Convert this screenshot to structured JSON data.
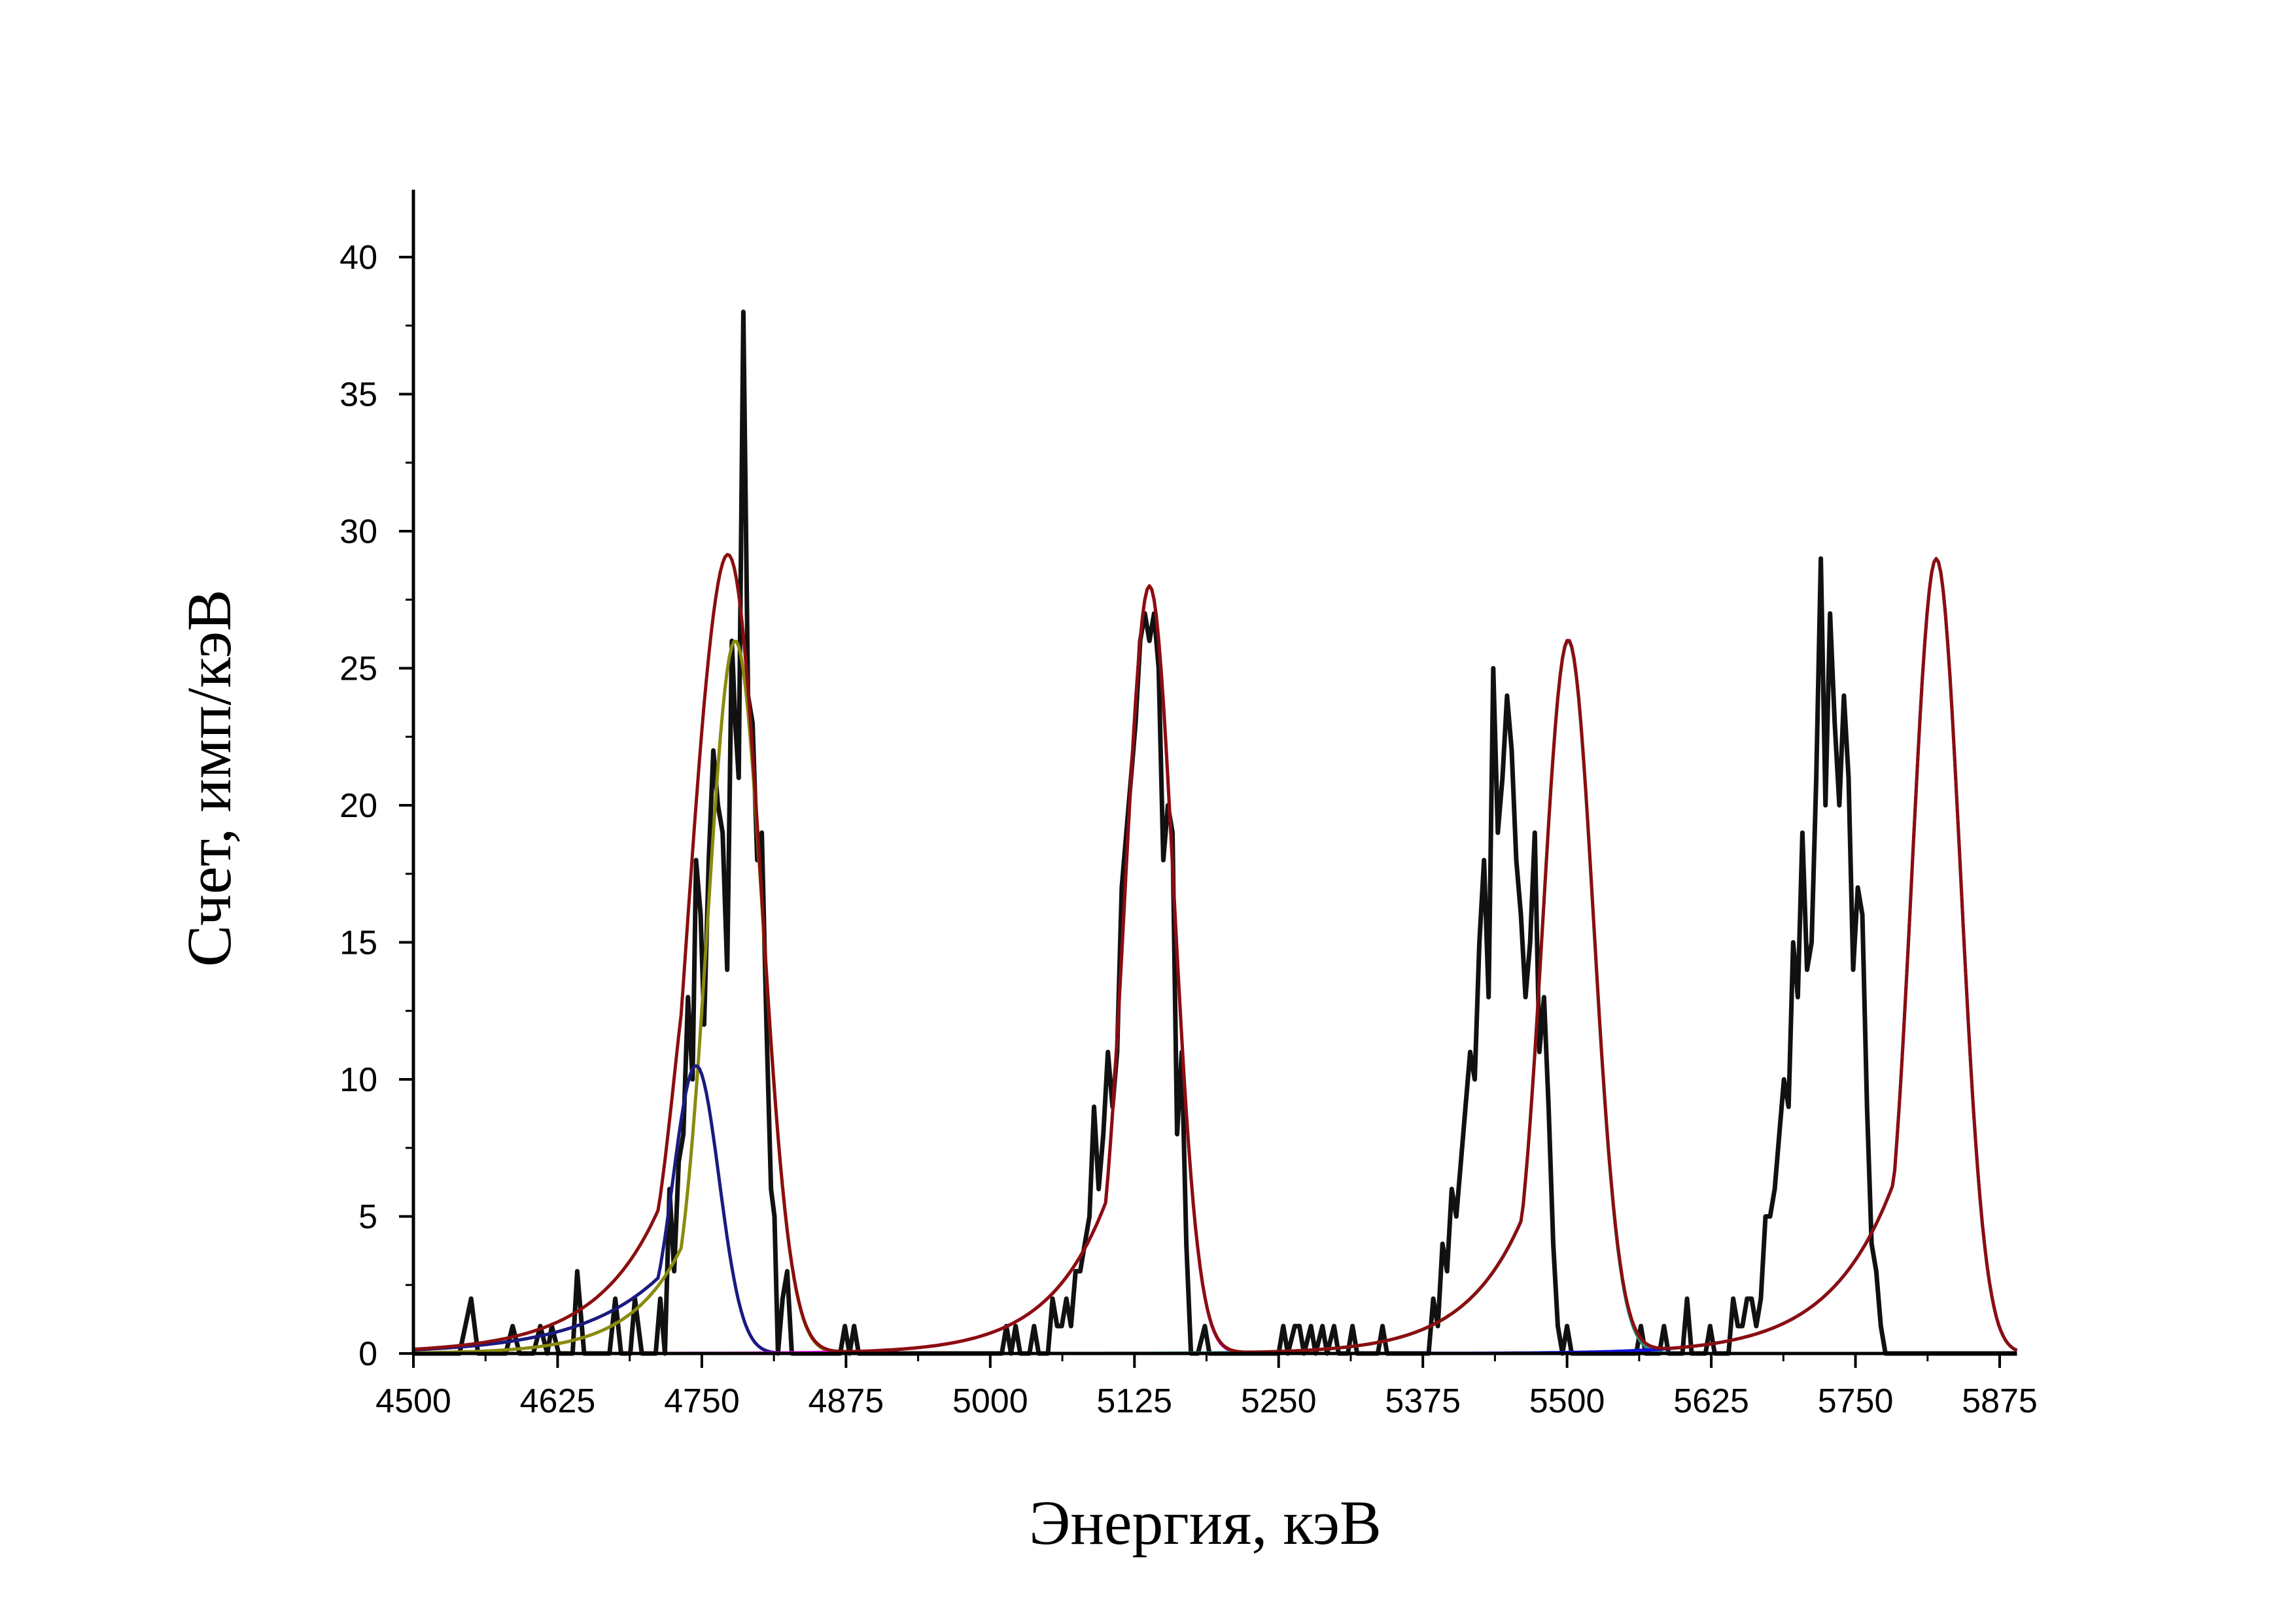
{
  "chart_data": {
    "type": "line",
    "xlabel": "Энергия, кэВ",
    "ylabel": "Счет, имп/кэВ",
    "xlim": [
      4500,
      5890
    ],
    "ylim": [
      0,
      42
    ],
    "x_ticks": [
      4500,
      4625,
      4750,
      4875,
      5000,
      5125,
      5250,
      5375,
      5500,
      5625,
      5750,
      5875
    ],
    "y_ticks": [
      0,
      5,
      10,
      15,
      20,
      25,
      30,
      35,
      40
    ],
    "grid": false,
    "legend": "none",
    "series": [
      {
        "kind": "measured",
        "color": "#111111",
        "points": [
          [
            4500,
            0
          ],
          [
            4540,
            0
          ],
          [
            4550,
            2
          ],
          [
            4556,
            0
          ],
          [
            4580,
            0
          ],
          [
            4586,
            1
          ],
          [
            4592,
            0
          ],
          [
            4604,
            0
          ],
          [
            4610,
            1
          ],
          [
            4616,
            0
          ],
          [
            4620,
            1
          ],
          [
            4626,
            0
          ],
          [
            4638,
            0
          ],
          [
            4642,
            3
          ],
          [
            4648,
            0
          ],
          [
            4670,
            0
          ],
          [
            4675,
            2
          ],
          [
            4680,
            0
          ],
          [
            4688,
            0
          ],
          [
            4692,
            2
          ],
          [
            4698,
            0
          ],
          [
            4710,
            0
          ],
          [
            4714,
            2
          ],
          [
            4718,
            0
          ],
          [
            4722,
            6
          ],
          [
            4726,
            3
          ],
          [
            4730,
            7
          ],
          [
            4734,
            8
          ],
          [
            4738,
            13
          ],
          [
            4742,
            10
          ],
          [
            4745,
            18
          ],
          [
            4749,
            16
          ],
          [
            4752,
            12
          ],
          [
            4756,
            18
          ],
          [
            4760,
            22
          ],
          [
            4764,
            20
          ],
          [
            4768,
            19
          ],
          [
            4772,
            14
          ],
          [
            4776,
            26
          ],
          [
            4779,
            23
          ],
          [
            4782,
            21
          ],
          [
            4786,
            38
          ],
          [
            4790,
            24
          ],
          [
            4794,
            23
          ],
          [
            4798,
            18
          ],
          [
            4802,
            19
          ],
          [
            4806,
            12
          ],
          [
            4810,
            6
          ],
          [
            4813,
            5
          ],
          [
            4816,
            0
          ],
          [
            4820,
            2
          ],
          [
            4824,
            3
          ],
          [
            4828,
            0
          ],
          [
            4870,
            0
          ],
          [
            4874,
            1
          ],
          [
            4878,
            0
          ],
          [
            4882,
            1
          ],
          [
            4886,
            0
          ],
          [
            5010,
            0
          ],
          [
            5014,
            1
          ],
          [
            5018,
            0
          ],
          [
            5022,
            1
          ],
          [
            5026,
            0
          ],
          [
            5034,
            0
          ],
          [
            5038,
            1
          ],
          [
            5042,
            0
          ],
          [
            5050,
            0
          ],
          [
            5054,
            2
          ],
          [
            5058,
            1
          ],
          [
            5062,
            1
          ],
          [
            5066,
            2
          ],
          [
            5070,
            1
          ],
          [
            5074,
            3
          ],
          [
            5078,
            3
          ],
          [
            5082,
            4
          ],
          [
            5086,
            5
          ],
          [
            5090,
            9
          ],
          [
            5094,
            6
          ],
          [
            5098,
            8
          ],
          [
            5102,
            11
          ],
          [
            5106,
            9
          ],
          [
            5110,
            11
          ],
          [
            5114,
            17
          ],
          [
            5118,
            19
          ],
          [
            5122,
            21
          ],
          [
            5126,
            23
          ],
          [
            5130,
            26
          ],
          [
            5134,
            27
          ],
          [
            5138,
            26
          ],
          [
            5142,
            27
          ],
          [
            5146,
            25
          ],
          [
            5150,
            18
          ],
          [
            5154,
            20
          ],
          [
            5158,
            19
          ],
          [
            5162,
            8
          ],
          [
            5166,
            11
          ],
          [
            5170,
            4
          ],
          [
            5174,
            0
          ],
          [
            5180,
            0
          ],
          [
            5186,
            1
          ],
          [
            5190,
            0
          ],
          [
            5250,
            0
          ],
          [
            5254,
            1
          ],
          [
            5258,
            0
          ],
          [
            5264,
            1
          ],
          [
            5268,
            1
          ],
          [
            5272,
            0
          ],
          [
            5278,
            1
          ],
          [
            5282,
            0
          ],
          [
            5288,
            1
          ],
          [
            5292,
            0
          ],
          [
            5298,
            1
          ],
          [
            5302,
            0
          ],
          [
            5310,
            0
          ],
          [
            5314,
            1
          ],
          [
            5318,
            0
          ],
          [
            5336,
            0
          ],
          [
            5340,
            1
          ],
          [
            5344,
            0
          ],
          [
            5380,
            0
          ],
          [
            5384,
            2
          ],
          [
            5388,
            1
          ],
          [
            5392,
            4
          ],
          [
            5396,
            3
          ],
          [
            5400,
            6
          ],
          [
            5404,
            5
          ],
          [
            5408,
            7
          ],
          [
            5412,
            9
          ],
          [
            5416,
            11
          ],
          [
            5420,
            10
          ],
          [
            5424,
            15
          ],
          [
            5428,
            18
          ],
          [
            5432,
            13
          ],
          [
            5436,
            25
          ],
          [
            5440,
            19
          ],
          [
            5444,
            21
          ],
          [
            5448,
            24
          ],
          [
            5452,
            22
          ],
          [
            5456,
            18
          ],
          [
            5460,
            16
          ],
          [
            5464,
            13
          ],
          [
            5468,
            15
          ],
          [
            5472,
            19
          ],
          [
            5476,
            11
          ],
          [
            5480,
            13
          ],
          [
            5484,
            9
          ],
          [
            5488,
            4
          ],
          [
            5492,
            1
          ],
          [
            5496,
            0
          ],
          [
            5500,
            1
          ],
          [
            5504,
            0
          ],
          [
            5560,
            0
          ],
          [
            5564,
            1
          ],
          [
            5568,
            0
          ],
          [
            5580,
            0
          ],
          [
            5584,
            1
          ],
          [
            5588,
            0
          ],
          [
            5600,
            0
          ],
          [
            5604,
            2
          ],
          [
            5608,
            0
          ],
          [
            5620,
            0
          ],
          [
            5624,
            1
          ],
          [
            5628,
            0
          ],
          [
            5640,
            0
          ],
          [
            5644,
            2
          ],
          [
            5648,
            1
          ],
          [
            5652,
            1
          ],
          [
            5656,
            2
          ],
          [
            5660,
            2
          ],
          [
            5664,
            1
          ],
          [
            5668,
            2
          ],
          [
            5672,
            5
          ],
          [
            5676,
            5
          ],
          [
            5680,
            6
          ],
          [
            5684,
            8
          ],
          [
            5688,
            10
          ],
          [
            5692,
            9
          ],
          [
            5696,
            15
          ],
          [
            5700,
            13
          ],
          [
            5704,
            19
          ],
          [
            5708,
            14
          ],
          [
            5712,
            15
          ],
          [
            5716,
            21
          ],
          [
            5720,
            29
          ],
          [
            5724,
            20
          ],
          [
            5728,
            27
          ],
          [
            5732,
            23
          ],
          [
            5736,
            20
          ],
          [
            5740,
            24
          ],
          [
            5744,
            21
          ],
          [
            5748,
            14
          ],
          [
            5752,
            17
          ],
          [
            5756,
            16
          ],
          [
            5760,
            9
          ],
          [
            5764,
            4
          ],
          [
            5768,
            3
          ],
          [
            5772,
            1
          ],
          [
            5776,
            0
          ],
          [
            5890,
            0
          ]
        ]
      },
      {
        "kind": "fit",
        "color": "#8a8a10",
        "shape": "tailed-gaussian",
        "peak": 4779,
        "amplitude": 26,
        "sigma": 24,
        "tail": 45,
        "range": [
          4500,
          5890
        ]
      },
      {
        "kind": "fit",
        "color": "#1a1a80",
        "shape": "tailed-gaussian",
        "peak": 4745,
        "amplitude": 10.5,
        "sigma": 20,
        "tail": 70,
        "range": [
          4500,
          5890
        ]
      },
      {
        "kind": "fit",
        "color": "#ff00ff",
        "shape": "tailed-gaussian",
        "peak": 5138,
        "amplitude": 28,
        "sigma": 21,
        "tail": 50,
        "range": [
          4500,
          5890
        ]
      },
      {
        "kind": "fit",
        "color": "#2a8c84",
        "shape": "tailed-gaussian",
        "peak": 5501,
        "amplitude": 26,
        "sigma": 22,
        "tail": 50,
        "range": [
          4500,
          5890
        ]
      },
      {
        "kind": "fit",
        "color": "#1010e0",
        "shape": "tailed-gaussian",
        "peak": 5820,
        "amplitude": 29,
        "sigma": 21,
        "tail": 55,
        "range": [
          4500,
          5890
        ]
      },
      {
        "kind": "fit-sum",
        "color": "#8b0e0e",
        "components": [
          1,
          2,
          3,
          4,
          5
        ]
      }
    ]
  }
}
